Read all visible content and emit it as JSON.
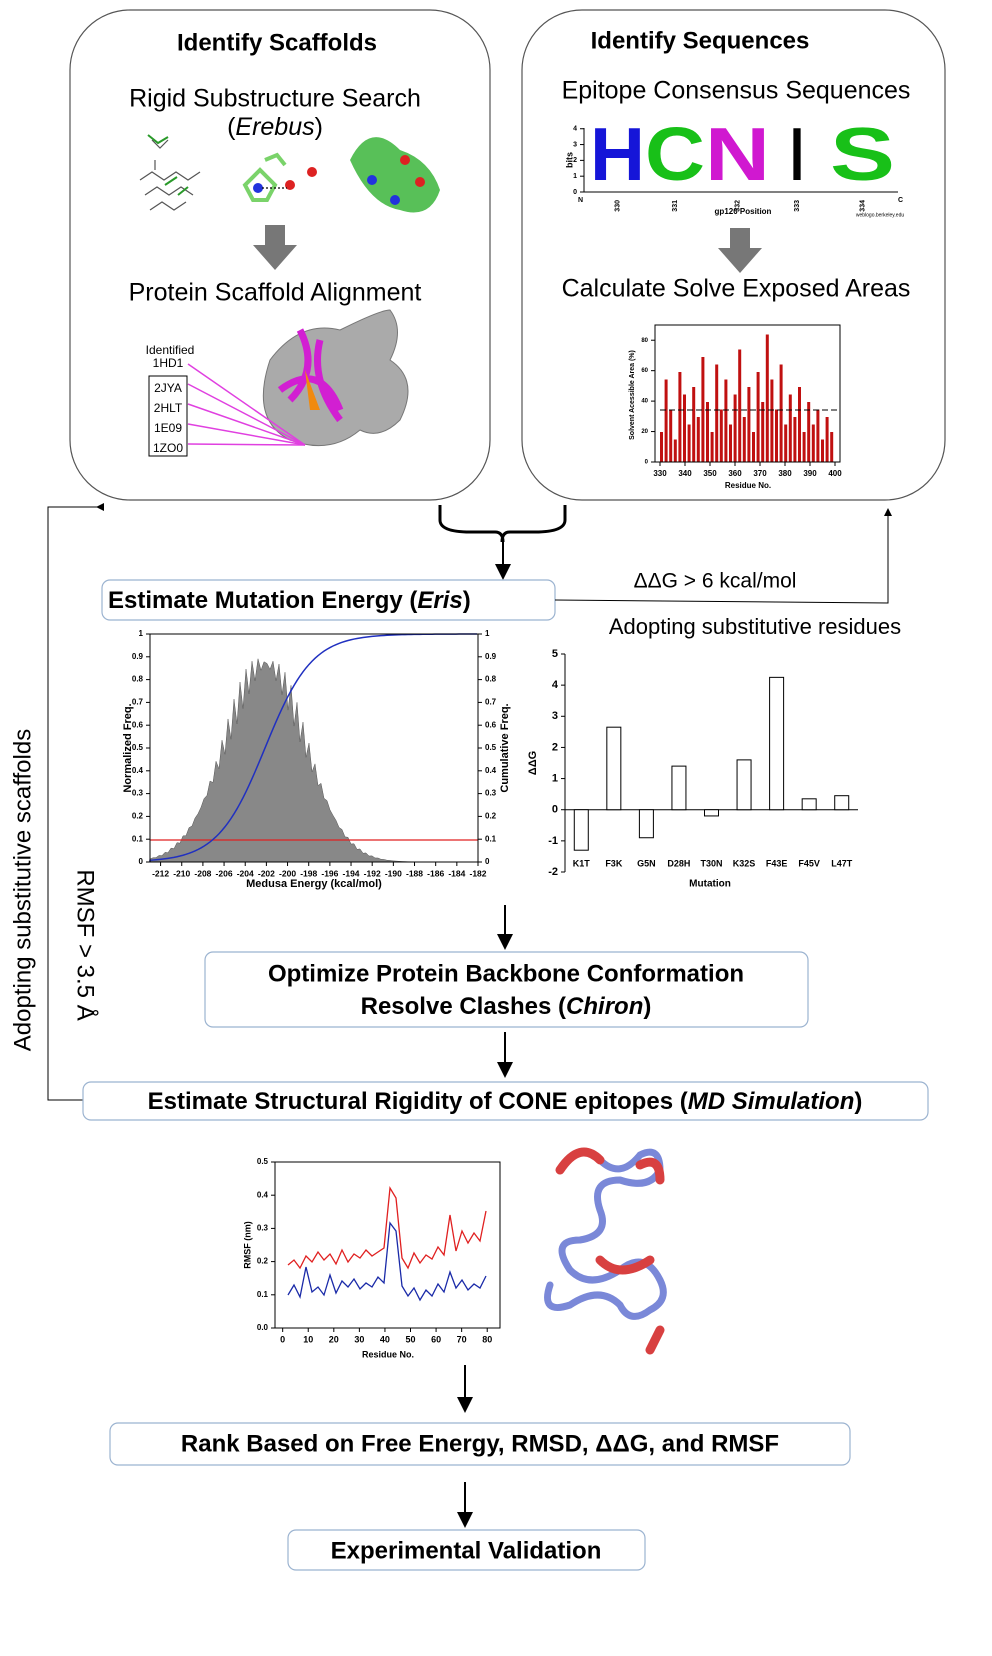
{
  "scaffolds": {
    "title": "Identify Scaffolds",
    "search": "Rigid Substructure Search",
    "search_open": "(",
    "search_tool": "Erebus",
    "search_close": ")",
    "alignment": "Protein Scaffold Alignment",
    "identified_label": "Identified",
    "ids": [
      "1HD1",
      "2JYA",
      "2HLT",
      "1E09",
      "1ZO0"
    ]
  },
  "sequences": {
    "title": "Identify Sequences",
    "consensus": "Epitope Consensus Sequences",
    "logo": {
      "y_label": "bits",
      "ylim": [
        0,
        4.3
      ],
      "yticks": [
        0,
        1,
        2,
        3,
        4
      ],
      "letters": [
        "H",
        "C",
        "N",
        "I",
        "S"
      ],
      "positions": [
        "330",
        "331",
        "332",
        "333",
        "334"
      ],
      "n_end": "N",
      "c_end": "C",
      "x_label": "gp120 Position",
      "credit": "weblogo.berkeley.edu"
    },
    "exposed": "Calculate Solve Exposed Areas",
    "sasa": {
      "y_label": "Solvent Acessible Area (%)",
      "x_label": "Residue No.",
      "xlim": [
        328,
        402
      ],
      "xticks": [
        330,
        340,
        350,
        360,
        370,
        380,
        390,
        400
      ],
      "ylim": [
        0,
        90
      ],
      "yticks": [
        0,
        20,
        40,
        60,
        80
      ]
    }
  },
  "mutation": {
    "title": "Estimate Mutation Energy (",
    "tool": "Eris",
    "close": ")"
  },
  "feedback": {
    "ddg": "ΔΔG > 6 kcal/mol",
    "rmsf": "RMSF > 3.5 Å",
    "scaffolds": "Adopting substitutive scaffolds"
  },
  "histogram": {
    "y_label": "Normalized Freq.",
    "y2_label": "Cumulative Freq.",
    "x_label": "Medusa Energy (kcal/mol)",
    "xlim": [
      -213,
      -182
    ],
    "xticks": [
      -212,
      -210,
      -208,
      -206,
      -204,
      -202,
      -200,
      -198,
      -196,
      -194,
      -192,
      -190,
      -188,
      -186,
      -184,
      -182
    ],
    "ylim": [
      0,
      1
    ],
    "yticks": [
      0,
      0.1,
      0.2,
      0.3,
      0.4,
      0.5,
      0.6,
      0.7,
      0.8,
      0.9,
      1
    ],
    "y2lim": [
      0,
      1
    ],
    "y2ticks": [
      0,
      0.1,
      0.2,
      0.3,
      0.4,
      0.5,
      0.6,
      0.7,
      0.8,
      0.9,
      1
    ]
  },
  "chart_data": {
    "type": "bar",
    "title": "Adopting substitutive residues",
    "categories": [
      "K1T",
      "F3K",
      "G5N",
      "D28H",
      "T30N",
      "K32S",
      "F43E",
      "F45V",
      "L47T"
    ],
    "values": [
      -1.3,
      2.65,
      -0.9,
      1.4,
      -0.2,
      1.6,
      4.25,
      0.35,
      0.45
    ],
    "color": "#ffffff",
    "x_label": "Mutation",
    "y_label": "ΔΔG",
    "ylim": [
      -2,
      5
    ],
    "yticks": [
      -2,
      -1,
      0,
      1,
      2,
      3,
      4,
      5
    ]
  },
  "optimize": {
    "line1": "Optimize Protein Backbone Conformation",
    "line2": "Resolve Clashes (",
    "tool": "Chiron",
    "close": ")"
  },
  "rigidity": {
    "title": "Estimate Structural Rigidity of CONE epitopes (",
    "tool": "MD Simulation",
    "close": ")"
  },
  "rmsf": {
    "y_label": "RMSF (nm)",
    "x_label": "Residue No.",
    "xlim": [
      -3,
      85
    ],
    "xticks": [
      0,
      10,
      20,
      30,
      40,
      50,
      60,
      70,
      80
    ],
    "ylim": [
      0,
      0.5
    ],
    "yticks": [
      {
        "value": 0,
        "label": "0.0"
      },
      0.1,
      0.2,
      0.3,
      0.4,
      0.5
    ]
  },
  "rank": "Rank Based on Free Energy, RMSD, ΔΔG, and RMSF",
  "validation": "Experimental Validation"
}
